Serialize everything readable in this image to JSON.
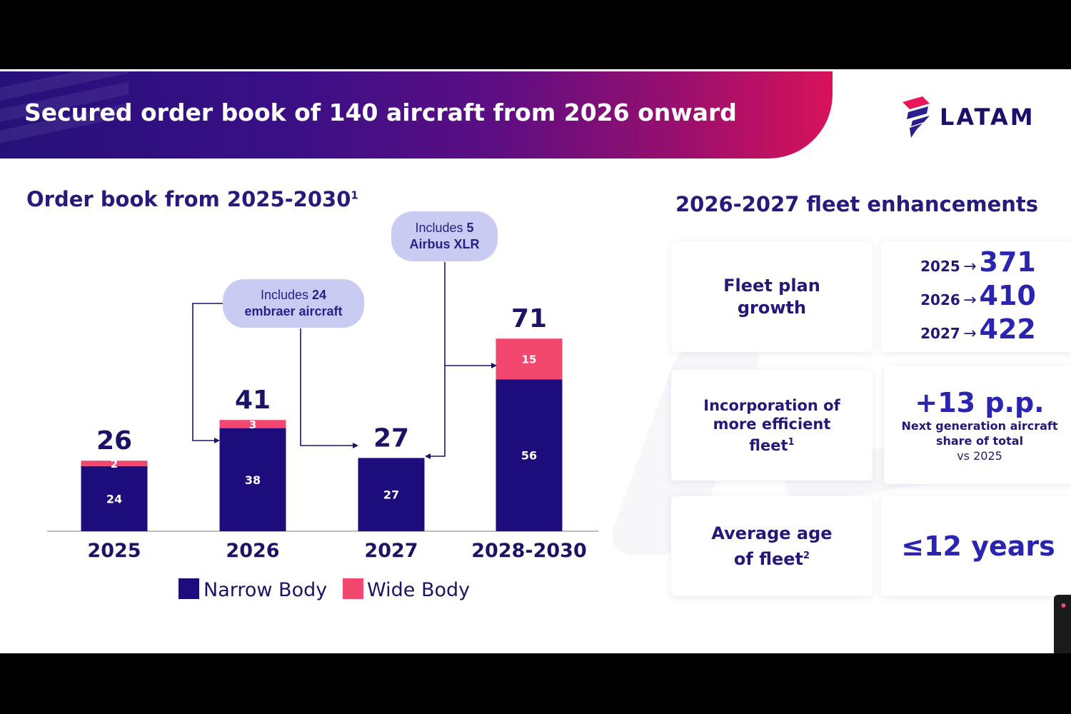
{
  "header": {
    "title": "Secured order book of 140 aircraft from 2026 onward",
    "logo_text": "LATAM"
  },
  "left": {
    "heading": "Order book from 2025-2030",
    "heading_sup": "1"
  },
  "callouts": {
    "embraer": {
      "pre": "Includes ",
      "num": "24",
      "post": "embraer aircraft"
    },
    "xlr": {
      "pre": "Includes ",
      "num": "5",
      "post": "Airbus XLR"
    }
  },
  "chart_data": {
    "type": "bar",
    "stacked": true,
    "categories": [
      "2025",
      "2026",
      "2027",
      "2028-2030"
    ],
    "series": [
      {
        "name": "Narrow Body",
        "values": [
          24,
          38,
          27,
          56
        ],
        "color": "#1d0d7c"
      },
      {
        "name": "Wide Body",
        "values": [
          2,
          3,
          0,
          15
        ],
        "color": "#f2486f"
      }
    ],
    "totals": [
      26,
      41,
      27,
      71
    ],
    "legend": "bottom",
    "grid": false,
    "xlabel": "",
    "ylabel": ""
  },
  "right": {
    "heading": "2026-2027 fleet enhancements",
    "fleet_plan": {
      "label": "Fleet plan growth",
      "rows": [
        {
          "year": "2025",
          "arrow": "→",
          "value": "371"
        },
        {
          "year": "2026",
          "arrow": "→",
          "value": "410"
        },
        {
          "year": "2027",
          "arrow": "→",
          "value": "422"
        }
      ]
    },
    "efficiency": {
      "label": "Incorporation of more efficient fleet",
      "label_sup": "1",
      "value": "+13 p.p.",
      "desc": "Next generation aircraft share of total",
      "vs": "vs 2025"
    },
    "age": {
      "label": "Average age of fleet",
      "label_sup": "2",
      "value": "≤12 years"
    }
  },
  "colors": {
    "narrow": "#1d0d7c",
    "wide": "#f2486f",
    "brand_navy": "#271a7d",
    "brand_pink": "#e6175c"
  }
}
